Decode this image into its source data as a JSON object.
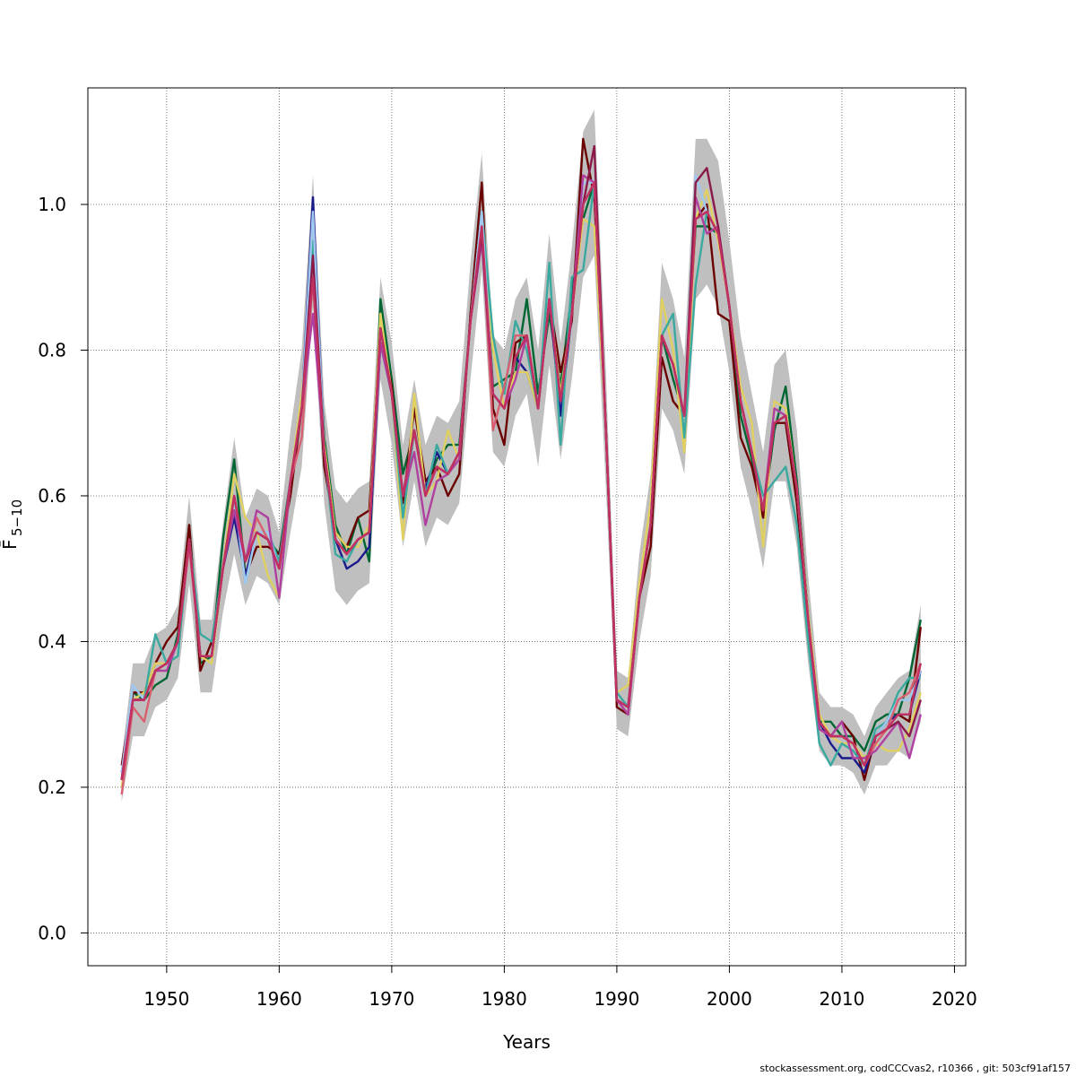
{
  "chart_data": {
    "type": "line",
    "title": "",
    "xlabel": "Years",
    "ylabel": "F̄",
    "ylabel_subscript": "5−10",
    "xlim": [
      1943,
      2021
    ],
    "ylim": [
      -0.045,
      1.16
    ],
    "x_ticks": [
      1950,
      1960,
      1970,
      1980,
      1990,
      2000,
      2010,
      2020
    ],
    "y_ticks": [
      0.0,
      0.2,
      0.4,
      0.6,
      0.8,
      1.0
    ],
    "y_tick_labels": [
      "0.0",
      "0.2",
      "0.4",
      "0.6",
      "0.8",
      "1.0"
    ],
    "grid": true,
    "legend": "none",
    "band_color": "#bfbfbf",
    "years": [
      1946,
      1947,
      1948,
      1949,
      1950,
      1951,
      1952,
      1953,
      1954,
      1955,
      1956,
      1957,
      1958,
      1959,
      1960,
      1961,
      1962,
      1963,
      1964,
      1965,
      1966,
      1967,
      1968,
      1969,
      1970,
      1971,
      1972,
      1973,
      1974,
      1975,
      1976,
      1977,
      1978,
      1979,
      1980,
      1981,
      1982,
      1983,
      1984,
      1985,
      1986,
      1987,
      1988,
      1989,
      1990,
      1991,
      1992,
      1993,
      1994,
      1995,
      1996,
      1997,
      1998,
      1999,
      2000,
      2001,
      2002,
      2003,
      2004,
      2005,
      2006,
      2007,
      2008,
      2009,
      2010,
      2011,
      2012,
      2013,
      2014,
      2015,
      2016,
      2017
    ],
    "base": [
      0.21,
      0.32,
      0.32,
      0.36,
      0.37,
      0.4,
      0.54,
      0.38,
      0.38,
      0.5,
      0.6,
      0.51,
      0.55,
      0.54,
      0.5,
      0.62,
      0.72,
      0.95,
      0.66,
      0.54,
      0.52,
      0.54,
      0.55,
      0.83,
      0.74,
      0.6,
      0.69,
      0.6,
      0.64,
      0.63,
      0.66,
      0.84,
      0.99,
      0.74,
      0.72,
      0.79,
      0.82,
      0.72,
      0.87,
      0.73,
      0.85,
      1.0,
      1.03,
      0.7,
      0.32,
      0.31,
      0.46,
      0.56,
      0.82,
      0.78,
      0.71,
      0.98,
      0.99,
      0.96,
      0.86,
      0.73,
      0.66,
      0.58,
      0.7,
      0.71,
      0.61,
      0.43,
      0.29,
      0.27,
      0.27,
      0.26,
      0.23,
      0.27,
      0.28,
      0.3,
      0.3,
      0.37
    ],
    "band_half_width": [
      0.03,
      0.05,
      0.05,
      0.05,
      0.05,
      0.05,
      0.06,
      0.05,
      0.05,
      0.06,
      0.08,
      0.06,
      0.06,
      0.06,
      0.05,
      0.07,
      0.08,
      0.09,
      0.07,
      0.07,
      0.07,
      0.07,
      0.07,
      0.07,
      0.07,
      0.07,
      0.07,
      0.07,
      0.07,
      0.07,
      0.07,
      0.08,
      0.08,
      0.08,
      0.08,
      0.08,
      0.08,
      0.08,
      0.09,
      0.08,
      0.09,
      0.1,
      0.1,
      0.08,
      0.04,
      0.04,
      0.06,
      0.07,
      0.1,
      0.09,
      0.08,
      0.11,
      0.1,
      0.1,
      0.09,
      0.09,
      0.08,
      0.08,
      0.08,
      0.09,
      0.08,
      0.06,
      0.04,
      0.04,
      0.04,
      0.04,
      0.04,
      0.04,
      0.05,
      0.05,
      0.06,
      0.08
    ],
    "series": [
      {
        "color": "#006633",
        "dev": [
          0.0,
          0.01,
          0.0,
          -0.02,
          -0.02,
          0.01,
          0.02,
          -0.01,
          0.0,
          0.04,
          0.05,
          -0.02,
          0.0,
          0.0,
          0.02,
          0.0,
          0.0,
          -0.02,
          0.02,
          0.02,
          0.0,
          0.03,
          -0.04,
          0.04,
          0.02,
          0.03,
          0.0,
          0.01,
          0.01,
          0.04,
          0.01,
          0.0,
          0.0,
          0.01,
          0.04,
          -0.02,
          0.05,
          0.02,
          -0.02,
          0.02,
          0.03,
          -0.02,
          0.0,
          0.0,
          0.0,
          0.0,
          0.0,
          0.0,
          0.0,
          -0.02,
          0.0,
          -0.01,
          -0.02,
          0.0,
          0.0,
          -0.02,
          -0.01,
          -0.01,
          -0.01,
          0.04,
          0.01,
          0.01,
          0.0,
          0.02,
          0.0,
          0.01,
          0.02,
          0.02,
          0.02,
          0.0,
          0.05,
          0.06
        ]
      },
      {
        "color": "#6b0000",
        "dev": [
          0.02,
          0.01,
          0.01,
          0.01,
          0.03,
          0.02,
          0.02,
          -0.02,
          0.02,
          0.0,
          -0.02,
          -0.02,
          -0.02,
          -0.01,
          0.02,
          -0.02,
          0.0,
          -0.05,
          -0.02,
          0.01,
          0.01,
          0.03,
          0.03,
          0.0,
          0.01,
          -0.01,
          0.03,
          0.02,
          0.0,
          -0.03,
          -0.03,
          0.01,
          0.04,
          -0.02,
          -0.05,
          0.02,
          0.0,
          0.0,
          0.0,
          0.04,
          -0.01,
          0.09,
          -0.02,
          0.0,
          -0.01,
          -0.01,
          0.0,
          -0.03,
          -0.03,
          -0.05,
          0.0,
          0.0,
          0.01,
          -0.11,
          -0.02,
          -0.05,
          -0.02,
          -0.01,
          0.0,
          -0.01,
          -0.02,
          -0.02,
          -0.01,
          0.0,
          0.02,
          0.01,
          -0.02,
          0.0,
          0.01,
          0.0,
          -0.01,
          0.05
        ]
      },
      {
        "color": "#1a1a8c",
        "dev": [
          0.01,
          0.0,
          0.0,
          0.0,
          0.0,
          0.0,
          0.0,
          0.0,
          0.0,
          0.0,
          -0.03,
          -0.02,
          0.0,
          0.0,
          0.01,
          0.0,
          0.0,
          0.06,
          0.0,
          0.0,
          -0.02,
          -0.03,
          -0.02,
          -0.02,
          0.0,
          0.0,
          0.0,
          0.01,
          0.02,
          0.0,
          0.0,
          0.0,
          0.0,
          0.0,
          0.0,
          0.0,
          -0.05,
          0.0,
          0.0,
          -0.02,
          0.0,
          0.0,
          0.0,
          0.0,
          0.0,
          0.0,
          0.0,
          0.0,
          0.0,
          0.0,
          0.0,
          0.0,
          0.0,
          0.0,
          0.0,
          0.0,
          0.0,
          0.0,
          0.0,
          0.0,
          0.0,
          0.0,
          0.0,
          -0.01,
          -0.03,
          -0.02,
          -0.01,
          0.0,
          0.01,
          0.0,
          0.0,
          -0.01
        ]
      },
      {
        "color": "#e0d060",
        "dev": [
          -0.01,
          0.0,
          0.01,
          0.01,
          0.0,
          0.0,
          0.0,
          0.0,
          -0.01,
          0.0,
          0.03,
          0.06,
          0.0,
          -0.05,
          -0.04,
          0.0,
          0.02,
          -0.05,
          0.01,
          0.01,
          0.01,
          -0.01,
          0.01,
          0.02,
          0.0,
          -0.06,
          0.05,
          0.0,
          -0.02,
          0.06,
          -0.01,
          0.0,
          -0.03,
          0.06,
          0.0,
          -0.02,
          -0.05,
          0.0,
          0.0,
          0.01,
          0.0,
          -0.02,
          -0.06,
          0.0,
          0.01,
          0.03,
          0.02,
          0.03,
          0.05,
          0.02,
          -0.05,
          0.0,
          0.03,
          -0.01,
          0.0,
          0.02,
          0.04,
          -0.05,
          0.03,
          0.01,
          0.0,
          0.01,
          0.01,
          0.0,
          -0.01,
          0.0,
          0.01,
          -0.01,
          -0.03,
          -0.05,
          -0.02,
          -0.04
        ]
      },
      {
        "color": "#3aa99f",
        "dev": [
          0.0,
          0.02,
          0.0,
          0.05,
          0.0,
          -0.02,
          0.0,
          0.03,
          0.02,
          0.0,
          0.0,
          -0.03,
          0.0,
          0.01,
          0.01,
          0.0,
          0.0,
          0.0,
          0.0,
          -0.02,
          -0.01,
          0.0,
          0.0,
          0.0,
          0.0,
          -0.03,
          0.0,
          0.0,
          0.03,
          0.0,
          0.0,
          0.0,
          0.0,
          0.08,
          0.02,
          0.05,
          -0.02,
          0.0,
          0.05,
          -0.06,
          0.05,
          -0.09,
          0.0,
          0.0,
          0.01,
          0.0,
          0.0,
          0.0,
          0.0,
          0.07,
          -0.03,
          -0.09,
          0.0,
          0.0,
          0.0,
          0.0,
          0.0,
          0.02,
          -0.08,
          -0.07,
          -0.05,
          -0.03,
          -0.03,
          -0.04,
          -0.01,
          -0.01,
          0.0,
          0.01,
          0.01,
          0.03,
          0.05,
          -0.02
        ]
      },
      {
        "color": "#a0c8f0",
        "dev": [
          0.01,
          0.02,
          0.0,
          0.0,
          0.0,
          0.0,
          0.0,
          0.0,
          0.0,
          0.0,
          0.0,
          -0.03,
          0.0,
          0.01,
          0.0,
          0.0,
          0.0,
          0.04,
          0.0,
          0.0,
          0.0,
          0.0,
          0.0,
          0.0,
          0.0,
          0.0,
          0.0,
          0.0,
          0.0,
          0.0,
          0.0,
          0.0,
          0.0,
          0.0,
          0.0,
          0.0,
          0.0,
          0.0,
          0.0,
          0.0,
          0.0,
          0.03,
          0.0,
          0.0,
          0.0,
          0.0,
          0.0,
          0.0,
          0.0,
          0.0,
          0.0,
          0.06,
          0.0,
          0.0,
          0.0,
          0.0,
          0.0,
          0.0,
          0.0,
          0.0,
          0.0,
          0.0,
          0.0,
          0.0,
          0.0,
          0.0,
          0.0,
          0.0,
          0.01,
          0.02,
          0.02,
          -0.01
        ]
      },
      {
        "color": "#d86070",
        "dev": [
          -0.02,
          -0.01,
          -0.03,
          0.0,
          0.0,
          0.0,
          -0.01,
          0.0,
          0.0,
          0.0,
          0.0,
          0.0,
          0.02,
          0.0,
          0.0,
          0.0,
          -0.04,
          -0.05,
          0.0,
          0.0,
          0.0,
          0.0,
          0.0,
          0.0,
          0.0,
          0.0,
          0.0,
          0.0,
          0.0,
          0.0,
          0.0,
          0.0,
          -0.02,
          -0.05,
          0.03,
          0.03,
          0.0,
          0.0,
          0.0,
          0.0,
          0.0,
          0.0,
          0.0,
          0.0,
          0.0,
          -0.01,
          0.0,
          0.0,
          0.0,
          0.0,
          0.0,
          0.0,
          0.0,
          0.0,
          0.0,
          0.0,
          0.0,
          0.0,
          0.0,
          0.0,
          0.0,
          0.0,
          0.0,
          0.0,
          0.0,
          0.0,
          0.0,
          -0.01,
          0.0,
          0.02,
          0.03,
          0.0
        ]
      },
      {
        "color": "#b040a0",
        "dev": [
          0.0,
          0.0,
          0.0,
          0.0,
          -0.01,
          0.0,
          0.0,
          0.0,
          0.0,
          0.0,
          -0.02,
          0.0,
          0.03,
          0.03,
          -0.04,
          0.0,
          0.0,
          -0.1,
          0.0,
          0.0,
          0.0,
          0.0,
          0.0,
          -0.02,
          0.0,
          0.0,
          -0.03,
          -0.04,
          -0.02,
          0.0,
          -0.01,
          0.0,
          -0.04,
          0.0,
          0.0,
          -0.03,
          0.0,
          0.0,
          0.0,
          0.0,
          0.0,
          0.04,
          0.0,
          0.0,
          0.0,
          -0.01,
          0.0,
          0.0,
          0.0,
          0.0,
          0.0,
          0.03,
          -0.03,
          0.01,
          0.0,
          0.0,
          0.0,
          0.0,
          0.02,
          0.0,
          0.0,
          0.0,
          -0.01,
          0.0,
          0.02,
          -0.02,
          0.01,
          -0.02,
          -0.01,
          -0.01,
          -0.06,
          -0.07
        ]
      },
      {
        "color": "#8b1a4a",
        "dev": [
          0.0,
          0.0,
          0.0,
          0.0,
          0.0,
          0.0,
          0.0,
          0.0,
          0.0,
          0.0,
          0.0,
          0.0,
          0.0,
          0.0,
          0.0,
          0.0,
          0.0,
          -0.02,
          0.0,
          0.0,
          0.0,
          0.0,
          0.0,
          0.0,
          0.0,
          0.0,
          0.0,
          0.0,
          0.0,
          0.0,
          0.0,
          0.0,
          -0.03,
          0.0,
          0.0,
          0.0,
          0.0,
          0.0,
          0.0,
          0.0,
          0.0,
          0.0,
          0.05,
          0.0,
          0.0,
          0.0,
          0.0,
          0.0,
          0.0,
          0.0,
          0.0,
          0.05,
          0.06,
          0.01,
          0.0,
          0.0,
          0.0,
          0.0,
          0.0,
          0.0,
          0.0,
          0.0,
          0.0,
          0.0,
          0.0,
          0.0,
          0.0,
          0.0,
          0.0,
          -0.01,
          -0.03,
          -0.05
        ]
      },
      {
        "color": "#c03060",
        "dev": [
          0.0,
          0.0,
          0.0,
          0.0,
          0.0,
          0.0,
          0.0,
          0.0,
          0.0,
          0.0,
          0.0,
          0.0,
          0.0,
          0.0,
          0.0,
          0.0,
          0.0,
          -0.05,
          0.0,
          0.0,
          0.0,
          0.0,
          0.0,
          0.0,
          0.0,
          0.0,
          0.0,
          0.0,
          0.0,
          0.0,
          0.0,
          0.0,
          -0.02,
          0.0,
          0.0,
          0.0,
          0.0,
          0.0,
          0.0,
          0.0,
          0.0,
          0.0,
          0.0,
          0.0,
          0.0,
          0.0,
          0.0,
          0.0,
          0.0,
          0.0,
          0.0,
          0.0,
          0.0,
          0.0,
          0.0,
          0.0,
          0.0,
          0.0,
          0.0,
          0.0,
          0.0,
          0.0,
          0.0,
          0.0,
          0.0,
          0.0,
          0.0,
          0.0,
          0.0,
          0.0,
          0.0,
          0.0
        ]
      }
    ],
    "footer": "stockassessment.org, codCCCvas2, r10366 , git: 503cf91af157"
  }
}
